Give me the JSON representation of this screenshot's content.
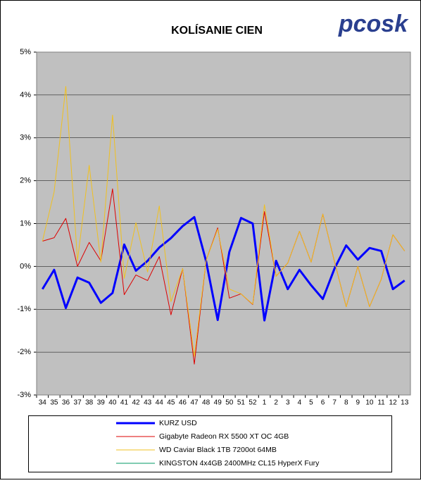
{
  "chart_data": {
    "type": "line",
    "title": "KOLÍSANIE CIEN",
    "logo": "pcosk",
    "categories": [
      "34",
      "35",
      "36",
      "37",
      "38",
      "39",
      "40",
      "41",
      "42",
      "43",
      "44",
      "45",
      "46",
      "47",
      "48",
      "49",
      "50",
      "51",
      "52",
      "1",
      "2",
      "3",
      "4",
      "5",
      "6",
      "7",
      "8",
      "9",
      "10",
      "11",
      "12",
      "13"
    ],
    "ylim": [
      -3,
      5
    ],
    "yticks": [
      {
        "value": -3,
        "label": "-3%"
      },
      {
        "value": -2,
        "label": "-2%"
      },
      {
        "value": -1,
        "label": "-1%"
      },
      {
        "value": 0,
        "label": "0%"
      },
      {
        "value": 1,
        "label": "1%"
      },
      {
        "value": 2,
        "label": "2%"
      },
      {
        "value": 3,
        "label": "3%"
      },
      {
        "value": 4,
        "label": "4%"
      },
      {
        "value": 5,
        "label": "5%"
      }
    ],
    "grid": true,
    "series": [
      {
        "name": "KURZ USD",
        "color": "#0000ff",
        "values": [
          -0.53,
          -0.08,
          -0.97,
          -0.26,
          -0.38,
          -0.85,
          -0.62,
          0.51,
          -0.1,
          0.13,
          0.44,
          0.66,
          0.94,
          1.15,
          0.13,
          -1.25,
          0.34,
          1.13,
          1.0,
          -1.26,
          0.13,
          -0.53,
          -0.08,
          -0.44,
          -0.76,
          -0.05,
          0.49,
          0.16,
          0.43,
          0.36,
          -0.53,
          -0.33
        ]
      },
      {
        "name": "Gigabyte Radeon RX 5500 XT OC 4GB",
        "color": "#dd0000",
        "values": [
          0.59,
          0.67,
          1.12,
          0.0,
          0.56,
          0.13,
          1.81,
          -0.66,
          -0.2,
          -0.33,
          0.23,
          -1.13,
          -0.05,
          -2.28,
          0.13,
          0.9,
          -0.74,
          -0.64,
          -0.89,
          1.28,
          -0.23,
          0.08,
          0.82,
          0.1,
          1.22,
          0.11,
          -0.94,
          0.0,
          -0.94,
          -0.3,
          0.74,
          0.36
        ]
      },
      {
        "name": "WD Caviar Black 1TB 7200ot 64MB",
        "color": "#f0c020",
        "values": [
          0.59,
          1.74,
          4.2,
          0.13,
          2.36,
          0.1,
          3.53,
          -0.28,
          1.02,
          -0.13,
          1.41,
          -0.82,
          -0.05,
          -2.1,
          0.13,
          0.87,
          -0.53,
          -0.64,
          -0.88,
          1.44,
          -0.23,
          0.08,
          0.82,
          0.1,
          1.22,
          0.11,
          -0.94,
          0.0,
          -0.94,
          -0.3,
          0.74,
          0.36
        ]
      },
      {
        "name": "KINGSTON 4x4GB 2400MHz CL15 HyperX Fury",
        "color": "#009966",
        "values": [
          null,
          null,
          null,
          null,
          null,
          null,
          null,
          null,
          null,
          null,
          null,
          null,
          null,
          null,
          null,
          null,
          null,
          null,
          null,
          null,
          null,
          null,
          null,
          null,
          null,
          null,
          null,
          null,
          null,
          null,
          null,
          null
        ]
      }
    ]
  }
}
